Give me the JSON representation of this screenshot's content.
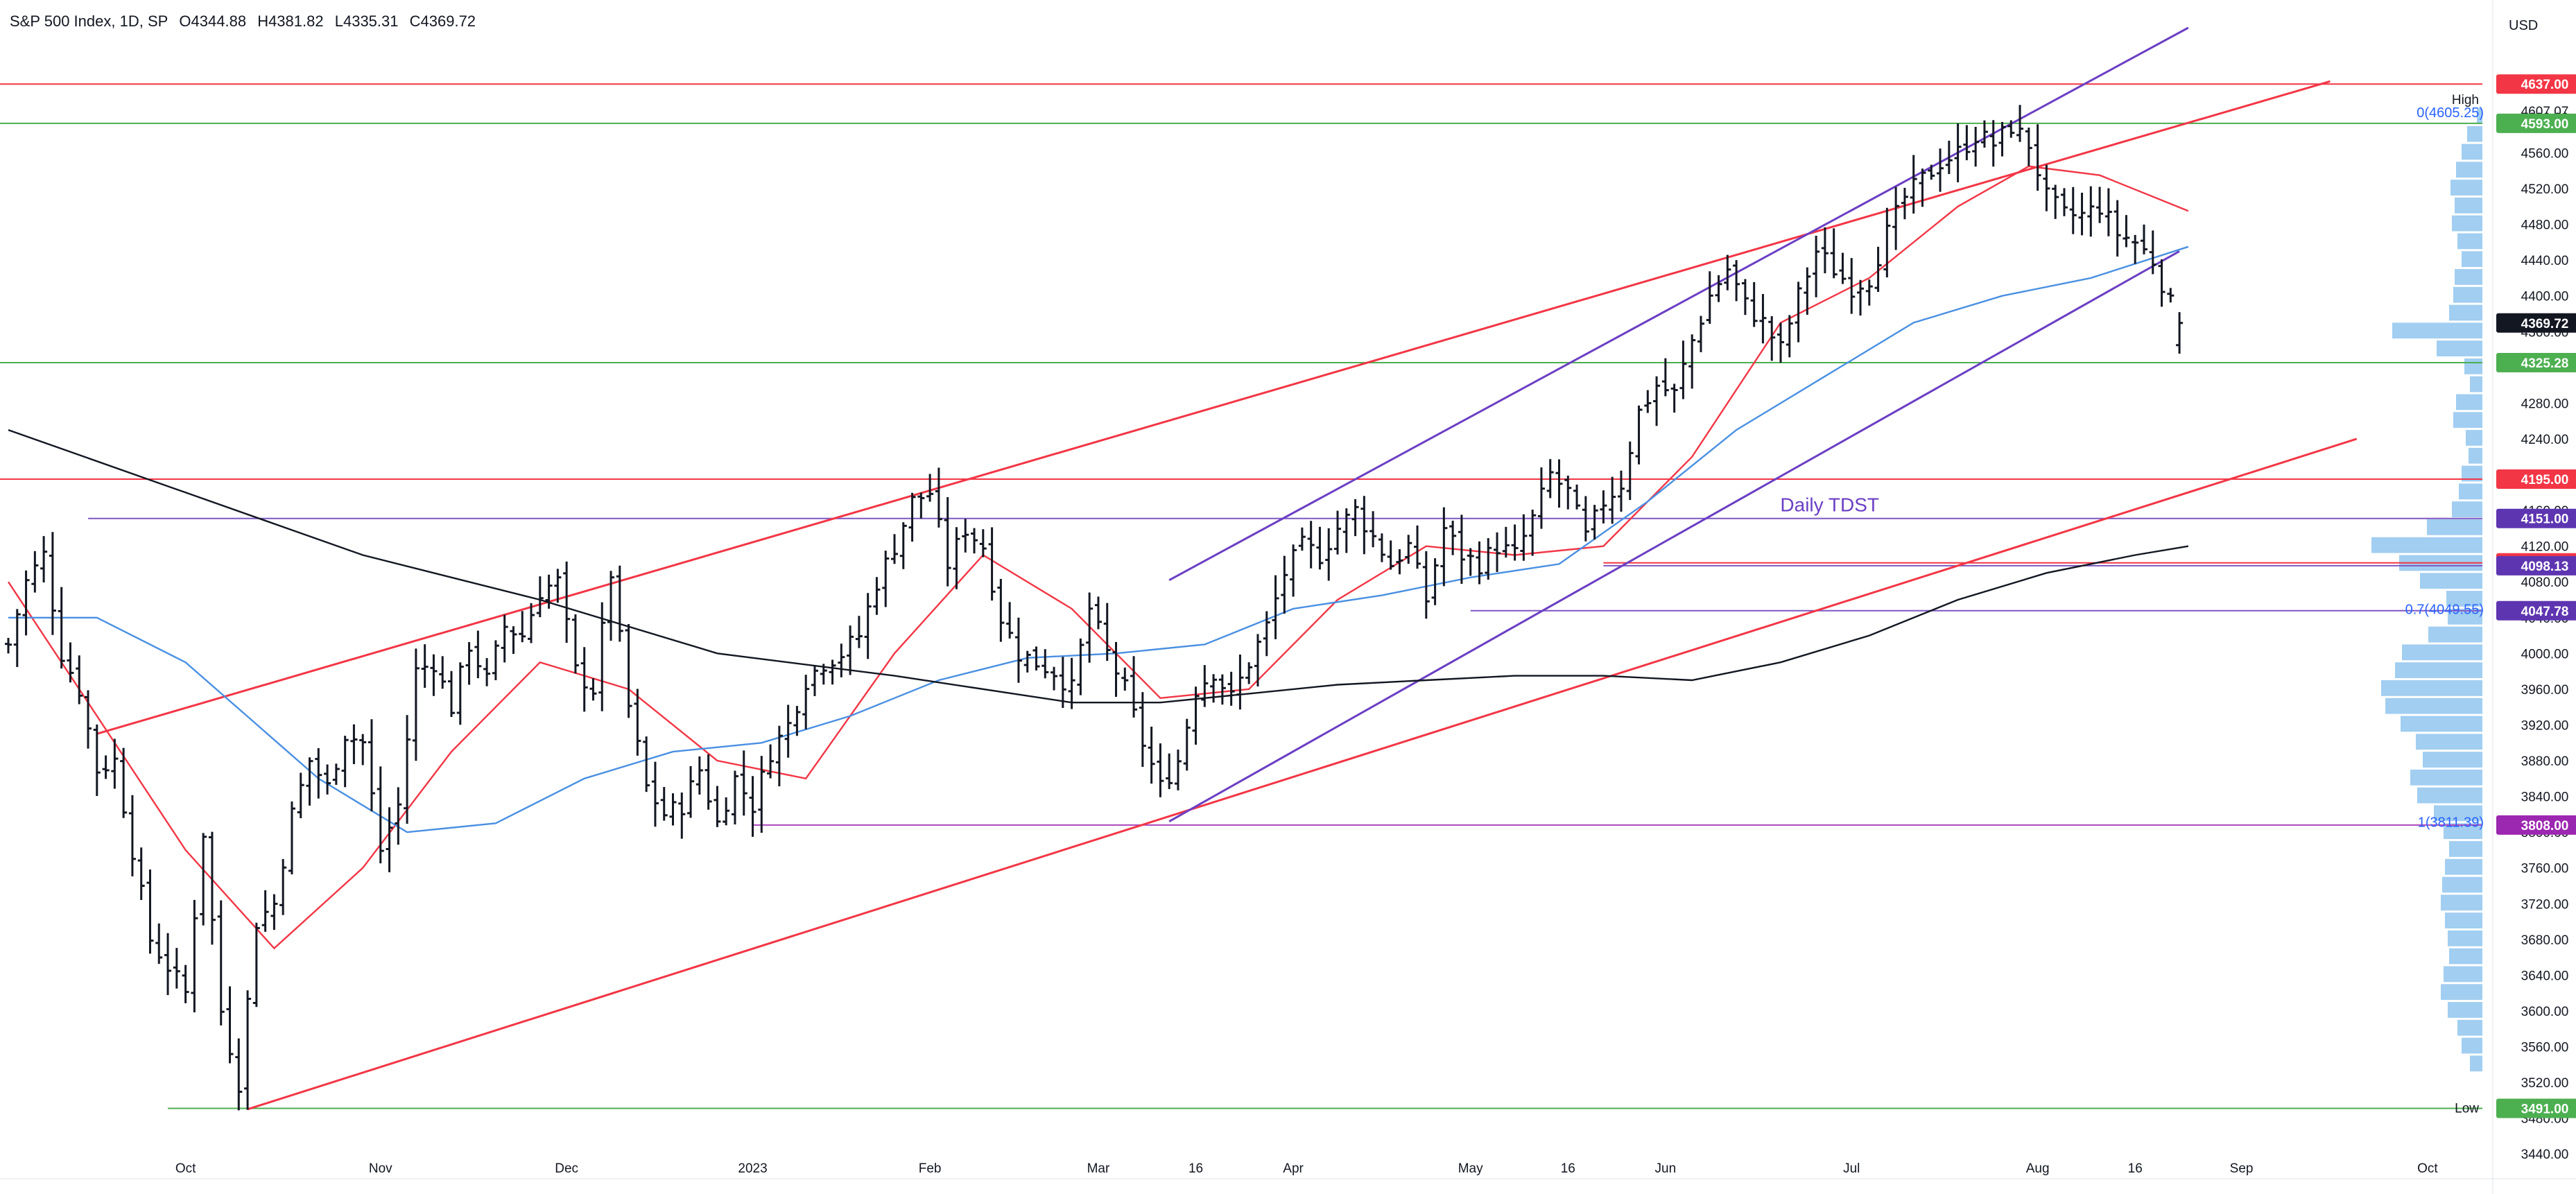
{
  "header": {
    "title": "S&P 500 Index, 1D, SP",
    "open": "O4344.88",
    "high": "H4381.82",
    "low": "L4335.31",
    "close": "C4369.72",
    "currency": "USD"
  },
  "chart_data": {
    "type": "candlestick-ohlc",
    "title": "S&P 500 Index, 1D, SP",
    "y_axis": {
      "min": 3420,
      "max": 4700,
      "ticks": [
        3440,
        3480,
        3520,
        3560,
        3600,
        3640,
        3680,
        3720,
        3760,
        3800,
        3840,
        3880,
        3920,
        3960,
        4000,
        4040,
        4080,
        4120,
        4160,
        4200,
        4240,
        4280,
        4320,
        4360,
        4400,
        4440,
        4480,
        4520,
        4560,
        4600
      ],
      "tick_labels": [
        "3440.00",
        "3480.00",
        "3520.00",
        "3560.00",
        "3600.00",
        "3640.00",
        "3680.00",
        "3720.00",
        "3760.00",
        "3800.00",
        "3840.00",
        "3880.00",
        "3920.00",
        "3960.00",
        "4000.00",
        "4040.00",
        "4080.00",
        "4120.00",
        "4160.00",
        "4200.00",
        "4240.00",
        "4280.00",
        "4320.00",
        "4360.00",
        "4400.00",
        "4440.00",
        "4480.00",
        "4520.00",
        "4560.00",
        "4600.00"
      ]
    },
    "x_axis": {
      "labels": [
        {
          "label": "Oct",
          "day": 20
        },
        {
          "label": "Nov",
          "day": 42
        },
        {
          "label": "Dec",
          "day": 63
        },
        {
          "label": "2023",
          "day": 84
        },
        {
          "label": "Feb",
          "day": 104
        },
        {
          "label": "Mar",
          "day": 123
        },
        {
          "label": "16",
          "day": 134
        },
        {
          "label": "Apr",
          "day": 145
        },
        {
          "label": "May",
          "day": 165
        },
        {
          "label": "16",
          "day": 176
        },
        {
          "label": "Jun",
          "day": 187
        },
        {
          "label": "Jul",
          "day": 208
        },
        {
          "label": "Aug",
          "day": 229
        },
        {
          "label": "16",
          "day": 240
        },
        {
          "label": "Sep",
          "day": 252
        },
        {
          "label": "Oct",
          "day": 273
        }
      ],
      "day_max": 285
    },
    "ohlc_anchors": [
      [
        0,
        4010
      ],
      [
        2,
        4080
      ],
      [
        4,
        4110
      ],
      [
        6,
        4000
      ],
      [
        8,
        3960
      ],
      [
        10,
        3870
      ],
      [
        12,
        3880
      ],
      [
        14,
        3780
      ],
      [
        16,
        3680
      ],
      [
        18,
        3650
      ],
      [
        20,
        3620
      ],
      [
        22,
        3800
      ],
      [
        24,
        3600
      ],
      [
        26,
        3520
      ],
      [
        28,
        3700
      ],
      [
        30,
        3720
      ],
      [
        32,
        3820
      ],
      [
        34,
        3880
      ],
      [
        36,
        3850
      ],
      [
        38,
        3910
      ],
      [
        40,
        3900
      ],
      [
        42,
        3780
      ],
      [
        44,
        3830
      ],
      [
        46,
        3980
      ],
      [
        48,
        3990
      ],
      [
        50,
        3940
      ],
      [
        52,
        4010
      ],
      [
        54,
        3970
      ],
      [
        56,
        4030
      ],
      [
        58,
        4020
      ],
      [
        60,
        4070
      ],
      [
        62,
        4080
      ],
      [
        64,
        3980
      ],
      [
        66,
        3960
      ],
      [
        68,
        4090
      ],
      [
        70,
        3940
      ],
      [
        72,
        3850
      ],
      [
        74,
        3820
      ],
      [
        76,
        3830
      ],
      [
        78,
        3870
      ],
      [
        80,
        3810
      ],
      [
        82,
        3860
      ],
      [
        84,
        3830
      ],
      [
        86,
        3890
      ],
      [
        88,
        3920
      ],
      [
        90,
        3970
      ],
      [
        92,
        3990
      ],
      [
        94,
        4000
      ],
      [
        96,
        4020
      ],
      [
        98,
        4080
      ],
      [
        100,
        4120
      ],
      [
        102,
        4170
      ],
      [
        104,
        4180
      ],
      [
        106,
        4100
      ],
      [
        108,
        4140
      ],
      [
        110,
        4120
      ],
      [
        112,
        4040
      ],
      [
        114,
        4000
      ],
      [
        116,
        3990
      ],
      [
        118,
        3980
      ],
      [
        120,
        3960
      ],
      [
        122,
        4050
      ],
      [
        124,
        4000
      ],
      [
        126,
        3960
      ],
      [
        128,
        3900
      ],
      [
        130,
        3850
      ],
      [
        132,
        3880
      ],
      [
        134,
        3960
      ],
      [
        136,
        3980
      ],
      [
        138,
        3950
      ],
      [
        140,
        3990
      ],
      [
        142,
        4030
      ],
      [
        144,
        4090
      ],
      [
        146,
        4120
      ],
      [
        148,
        4110
      ],
      [
        150,
        4140
      ],
      [
        152,
        4160
      ],
      [
        154,
        4130
      ],
      [
        156,
        4100
      ],
      [
        158,
        4120
      ],
      [
        160,
        4060
      ],
      [
        162,
        4140
      ],
      [
        164,
        4110
      ],
      [
        166,
        4100
      ],
      [
        168,
        4120
      ],
      [
        170,
        4110
      ],
      [
        172,
        4150
      ],
      [
        174,
        4200
      ],
      [
        176,
        4180
      ],
      [
        178,
        4130
      ],
      [
        180,
        4170
      ],
      [
        182,
        4190
      ],
      [
        184,
        4270
      ],
      [
        186,
        4300
      ],
      [
        188,
        4290
      ],
      [
        190,
        4350
      ],
      [
        192,
        4400
      ],
      [
        194,
        4430
      ],
      [
        196,
        4390
      ],
      [
        198,
        4370
      ],
      [
        200,
        4340
      ],
      [
        202,
        4400
      ],
      [
        204,
        4450
      ],
      [
        206,
        4430
      ],
      [
        208,
        4410
      ],
      [
        210,
        4420
      ],
      [
        212,
        4470
      ],
      [
        214,
        4510
      ],
      [
        216,
        4530
      ],
      [
        218,
        4550
      ],
      [
        220,
        4560
      ],
      [
        222,
        4580
      ],
      [
        224,
        4570
      ],
      [
        226,
        4590
      ],
      [
        228,
        4570
      ],
      [
        230,
        4510
      ],
      [
        232,
        4490
      ],
      [
        234,
        4490
      ],
      [
        236,
        4500
      ],
      [
        238,
        4470
      ],
      [
        240,
        4460
      ],
      [
        242,
        4440
      ],
      [
        244,
        4390
      ],
      [
        245,
        4370
      ]
    ],
    "moving_averages": [
      {
        "name": "MA20",
        "color": "#f23645",
        "points": [
          [
            0,
            4080
          ],
          [
            20,
            3780
          ],
          [
            30,
            3670
          ],
          [
            40,
            3760
          ],
          [
            50,
            3890
          ],
          [
            60,
            3990
          ],
          [
            70,
            3960
          ],
          [
            80,
            3880
          ],
          [
            90,
            3860
          ],
          [
            100,
            4000
          ],
          [
            110,
            4110
          ],
          [
            120,
            4050
          ],
          [
            130,
            3950
          ],
          [
            140,
            3960
          ],
          [
            150,
            4060
          ],
          [
            160,
            4120
          ],
          [
            170,
            4110
          ],
          [
            180,
            4120
          ],
          [
            190,
            4220
          ],
          [
            200,
            4370
          ],
          [
            210,
            4420
          ],
          [
            220,
            4500
          ],
          [
            228,
            4545
          ],
          [
            236,
            4535
          ],
          [
            246,
            4495
          ]
        ]
      },
      {
        "name": "MA50",
        "color": "#4a90e2",
        "points": [
          [
            0,
            4040
          ],
          [
            10,
            4040
          ],
          [
            20,
            3990
          ],
          [
            35,
            3860
          ],
          [
            45,
            3800
          ],
          [
            55,
            3810
          ],
          [
            65,
            3860
          ],
          [
            75,
            3890
          ],
          [
            85,
            3900
          ],
          [
            95,
            3930
          ],
          [
            105,
            3970
          ],
          [
            115,
            3995
          ],
          [
            125,
            4000
          ],
          [
            135,
            4010
          ],
          [
            145,
            4050
          ],
          [
            155,
            4065
          ],
          [
            165,
            4085
          ],
          [
            175,
            4100
          ],
          [
            185,
            4170
          ],
          [
            195,
            4250
          ],
          [
            205,
            4310
          ],
          [
            215,
            4370
          ],
          [
            225,
            4400
          ],
          [
            235,
            4420
          ],
          [
            246,
            4455
          ]
        ]
      },
      {
        "name": "MA200",
        "color": "#131722",
        "points": [
          [
            0,
            4250
          ],
          [
            20,
            4180
          ],
          [
            40,
            4110
          ],
          [
            60,
            4060
          ],
          [
            80,
            4000
          ],
          [
            100,
            3975
          ],
          [
            120,
            3945
          ],
          [
            130,
            3945
          ],
          [
            140,
            3955
          ],
          [
            150,
            3965
          ],
          [
            160,
            3970
          ],
          [
            170,
            3975
          ],
          [
            180,
            3975
          ],
          [
            190,
            3970
          ],
          [
            200,
            3990
          ],
          [
            210,
            4020
          ],
          [
            220,
            4060
          ],
          [
            230,
            4090
          ],
          [
            240,
            4110
          ],
          [
            246,
            4120
          ]
        ]
      }
    ],
    "trendlines": [
      {
        "color": "#f23645",
        "from": [
          10,
          3910
        ],
        "to": [
          262,
          4640
        ]
      },
      {
        "color": "#f23645",
        "from": [
          27,
          3490
        ],
        "to": [
          265,
          4240
        ]
      },
      {
        "color": "#6b3fc4",
        "from": [
          131,
          4082
        ],
        "to": [
          246,
          4700
        ]
      },
      {
        "color": "#6b3fc4",
        "from": [
          131,
          3812
        ],
        "to": [
          245,
          4450
        ]
      }
    ],
    "horizontal_levels": [
      {
        "value": 4637,
        "color": "#f23645",
        "label": "4637.00",
        "full": true
      },
      {
        "value": 4593,
        "color": "#4caf50",
        "label": "4593.00",
        "full": true
      },
      {
        "value": 4325.28,
        "color": "#4caf50",
        "label": "4325.28",
        "full": true
      },
      {
        "value": 4195,
        "color": "#f23645",
        "label": "4195.00",
        "full": true
      },
      {
        "value": 4151,
        "color": "#7e57c2",
        "label": "4151.00",
        "from": 9
      },
      {
        "value": 4101.33,
        "color": "#f23645",
        "label": "4101.33",
        "from": 180
      },
      {
        "value": 4098.13,
        "color": "#7e57c2",
        "label": "4098.13",
        "from": 180
      },
      {
        "value": 4047.78,
        "color": "#7e57c2",
        "label": "4047.78",
        "from": 165
      },
      {
        "value": 3808,
        "color": "#ab47bc",
        "label": "3808.00",
        "from": 84
      },
      {
        "value": 3491,
        "color": "#4caf50",
        "label": "3491.00",
        "from": 18
      }
    ],
    "price_tags": [
      {
        "value": 4637,
        "label": "4637.00",
        "color": "#f23645"
      },
      {
        "value": 4593,
        "label": "4593.00",
        "color": "#4caf50"
      },
      {
        "value": 4369.72,
        "label": "4369.72",
        "color": "#131722"
      },
      {
        "value": 4325.28,
        "label": "4325.28",
        "color": "#4caf50"
      },
      {
        "value": 4195,
        "label": "4195.00",
        "color": "#f23645"
      },
      {
        "value": 4151,
        "label": "4151.00",
        "color": "#5e35b1"
      },
      {
        "value": 4101.33,
        "label": "4101.33",
        "color": "#f23645"
      },
      {
        "value": 4098.13,
        "label": "4098.13",
        "color": "#5e35b1"
      },
      {
        "value": 4047.78,
        "label": "4047.78",
        "color": "#5e35b1"
      },
      {
        "value": 3808,
        "label": "3808.00",
        "color": "#9c27b0"
      },
      {
        "value": 3491,
        "label": "3491.00",
        "color": "#4caf50"
      }
    ],
    "text_marks": [
      {
        "text": "High",
        "value": 4607.07
      },
      {
        "text": "4607.07",
        "value": 4607.07
      },
      {
        "text": "Low",
        "value": 3491.58
      },
      {
        "text": "3491.58",
        "value": 3491.58
      }
    ],
    "fib_labels": [
      {
        "text": "0(4605.25)",
        "value": 4605.25
      },
      {
        "text": "0.7(4049.55)",
        "value": 4049.55
      },
      {
        "text": "1(3811.39)",
        "value": 3811.39
      }
    ],
    "annotations": [
      {
        "text": "Daily TDST",
        "day": 189,
        "value": 4165,
        "color": "#6b3fc4"
      }
    ],
    "volume_profile": {
      "color": "#90c5ef",
      "bins": [
        [
          4600,
          8
        ],
        [
          4580,
          22
        ],
        [
          4560,
          30
        ],
        [
          4540,
          38
        ],
        [
          4520,
          46
        ],
        [
          4500,
          40
        ],
        [
          4480,
          44
        ],
        [
          4460,
          36
        ],
        [
          4440,
          30
        ],
        [
          4420,
          40
        ],
        [
          4400,
          42
        ],
        [
          4380,
          48
        ],
        [
          4360,
          130
        ],
        [
          4340,
          66
        ],
        [
          4320,
          26
        ],
        [
          4300,
          18
        ],
        [
          4280,
          38
        ],
        [
          4260,
          42
        ],
        [
          4240,
          24
        ],
        [
          4220,
          20
        ],
        [
          4200,
          30
        ],
        [
          4180,
          34
        ],
        [
          4160,
          44
        ],
        [
          4140,
          80
        ],
        [
          4120,
          160
        ],
        [
          4100,
          120
        ],
        [
          4080,
          90
        ],
        [
          4060,
          52
        ],
        [
          4040,
          50
        ],
        [
          4020,
          78
        ],
        [
          4000,
          116
        ],
        [
          3980,
          126
        ],
        [
          3960,
          146
        ],
        [
          3940,
          140
        ],
        [
          3920,
          118
        ],
        [
          3900,
          96
        ],
        [
          3880,
          86
        ],
        [
          3860,
          104
        ],
        [
          3840,
          94
        ],
        [
          3820,
          70
        ],
        [
          3800,
          56
        ],
        [
          3780,
          48
        ],
        [
          3760,
          54
        ],
        [
          3740,
          58
        ],
        [
          3720,
          60
        ],
        [
          3700,
          54
        ],
        [
          3680,
          50
        ],
        [
          3660,
          48
        ],
        [
          3640,
          56
        ],
        [
          3620,
          60
        ],
        [
          3600,
          50
        ],
        [
          3580,
          36
        ],
        [
          3560,
          30
        ],
        [
          3540,
          18
        ]
      ]
    },
    "grid": false,
    "legend": "none"
  }
}
